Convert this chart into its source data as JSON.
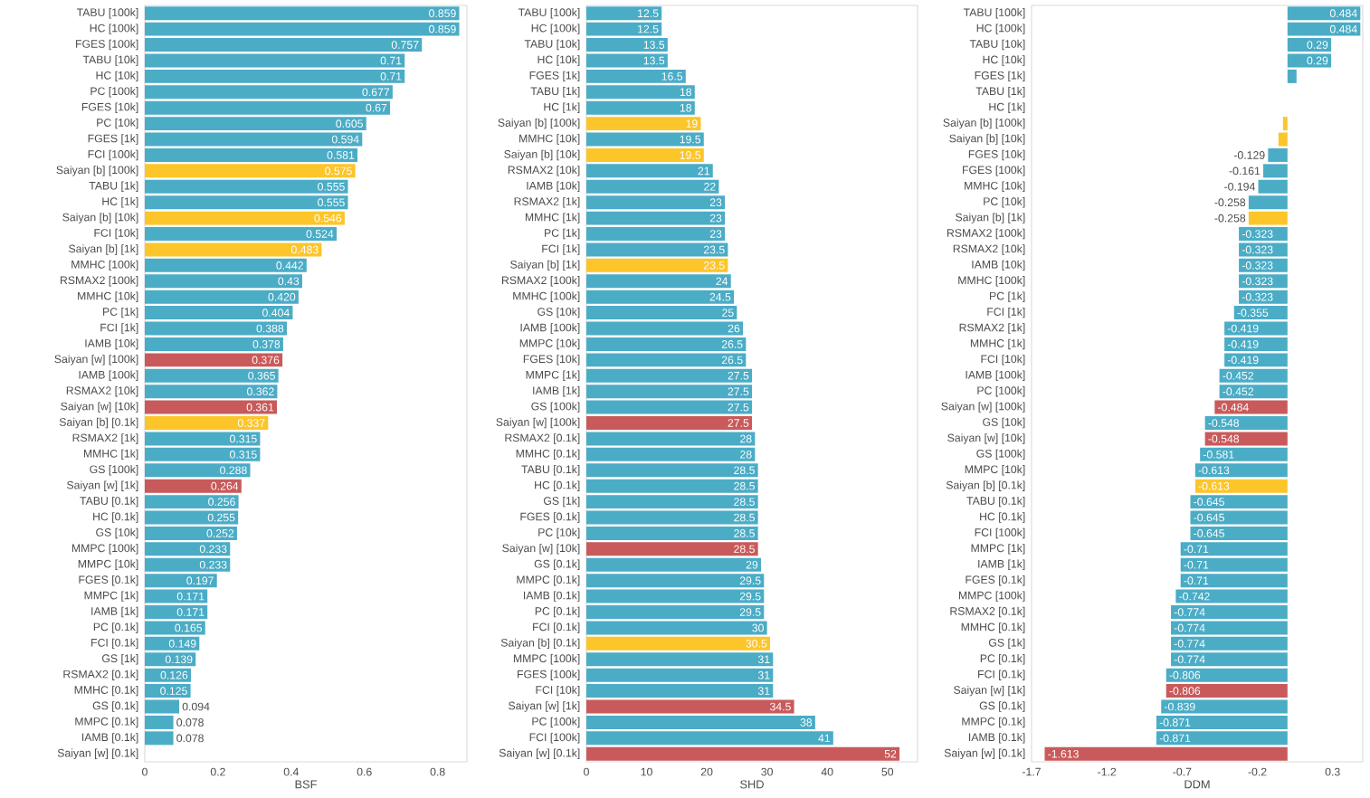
{
  "chart_data": [
    {
      "type": "bar",
      "orientation": "horizontal",
      "xlabel": "BSF",
      "xlim": [
        0,
        0.88
      ],
      "xticks": [
        0,
        0.2,
        0.4,
        0.6,
        0.8
      ],
      "categories": [
        "TABU [100k]",
        "HC [100k]",
        "FGES [100k]",
        "TABU [10k]",
        "HC [10k]",
        "PC [100k]",
        "FGES [10k]",
        "PC [10k]",
        "FGES [1k]",
        "FCI [100k]",
        "Saiyan [b] [100k]",
        "TABU [1k]",
        "HC [1k]",
        "Saiyan [b] [10k]",
        "FCI [10k]",
        "Saiyan [b] [1k]",
        "MMHC [100k]",
        "RSMAX2 [100k]",
        "MMHC [10k]",
        "PC [1k]",
        "FCI [1k]",
        "IAMB [10k]",
        "Saiyan [w] [100k]",
        "IAMB [100k]",
        "RSMAX2 [10k]",
        "Saiyan [w] [10k]",
        "Saiyan [b] [0.1k]",
        "RSMAX2 [1k]",
        "MMHC [1k]",
        "GS [100k]",
        "Saiyan [w] [1k]",
        "TABU [0.1k]",
        "HC [0.1k]",
        "GS [10k]",
        "MMPC [100k]",
        "MMPC [10k]",
        "FGES [0.1k]",
        "MMPC [1k]",
        "IAMB [1k]",
        "PC [0.1k]",
        "FCI [0.1k]",
        "GS [1k]",
        "RSMAX2 [0.1k]",
        "MMHC [0.1k]",
        "GS [0.1k]",
        "MMPC [0.1k]",
        "IAMB [0.1k]",
        "Saiyan [w] [0.1k]"
      ],
      "values": [
        0.859,
        0.859,
        0.757,
        0.71,
        0.71,
        0.677,
        0.67,
        0.605,
        0.594,
        0.581,
        0.575,
        0.555,
        0.555,
        0.546,
        0.524,
        0.483,
        0.442,
        0.43,
        0.42,
        0.404,
        0.388,
        0.378,
        0.376,
        0.365,
        0.362,
        0.361,
        0.337,
        0.315,
        0.315,
        0.288,
        0.264,
        0.256,
        0.255,
        0.252,
        0.233,
        0.233,
        0.197,
        0.171,
        0.171,
        0.165,
        0.149,
        0.139,
        0.126,
        0.125,
        0.094,
        0.078,
        0.078,
        0
      ],
      "value_labels": [
        "0.859",
        "0.859",
        "0.757",
        "0.71",
        "0.71",
        "0.677",
        "0.67",
        "0.605",
        "0.594",
        "0.581",
        "0.575",
        "0.555",
        "0.555",
        "0.546",
        "0.524",
        "0.483",
        "0.442",
        "0.43",
        "0.420",
        "0.404",
        "0.388",
        "0.378",
        "0.376",
        "0.365",
        "0.362",
        "0.361",
        "0.337",
        "0.315",
        "0.315",
        "0.288",
        "0.264",
        "0.256",
        "0.255",
        "0.252",
        "0.233",
        "0.233",
        "0.197",
        "0.171",
        "0.171",
        "0.165",
        "0.149",
        "0.139",
        "0.126",
        "0.125",
        "0.094",
        "0.078",
        "0.078",
        null
      ],
      "colors": [
        "#4bacc6",
        "#4bacc6",
        "#4bacc6",
        "#4bacc6",
        "#4bacc6",
        "#4bacc6",
        "#4bacc6",
        "#4bacc6",
        "#4bacc6",
        "#4bacc6",
        "#fcc52a",
        "#4bacc6",
        "#4bacc6",
        "#fcc52a",
        "#4bacc6",
        "#fcc52a",
        "#4bacc6",
        "#4bacc6",
        "#4bacc6",
        "#4bacc6",
        "#4bacc6",
        "#4bacc6",
        "#c95a5b",
        "#4bacc6",
        "#4bacc6",
        "#c95a5b",
        "#fcc52a",
        "#4bacc6",
        "#4bacc6",
        "#4bacc6",
        "#c95a5b",
        "#4bacc6",
        "#4bacc6",
        "#4bacc6",
        "#4bacc6",
        "#4bacc6",
        "#4bacc6",
        "#4bacc6",
        "#4bacc6",
        "#4bacc6",
        "#4bacc6",
        "#4bacc6",
        "#4bacc6",
        "#4bacc6",
        "#4bacc6",
        "#4bacc6",
        "#4bacc6",
        "#c95a5b"
      ]
    },
    {
      "type": "bar",
      "orientation": "horizontal",
      "xlabel": "SHD",
      "xlim": [
        0,
        55
      ],
      "xticks": [
        0,
        10,
        20,
        30,
        40,
        50
      ],
      "categories": [
        "TABU [100k]",
        "HC [100k]",
        "TABU [10k]",
        "HC [10k]",
        "FGES [1k]",
        "TABU [1k]",
        "HC [1k]",
        "Saiyan [b] [100k]",
        "MMHC [10k]",
        "Saiyan [b] [10k]",
        "RSMAX2 [10k]",
        "IAMB [10k]",
        "RSMAX2 [1k]",
        "MMHC [1k]",
        "PC [1k]",
        "FCI [1k]",
        "Saiyan [b] [1k]",
        "RSMAX2 [100k]",
        "MMHC [100k]",
        "GS [10k]",
        "IAMB [100k]",
        "MMPC [10k]",
        "FGES [10k]",
        "MMPC [1k]",
        "IAMB [1k]",
        "GS [100k]",
        "Saiyan [w] [100k]",
        "RSMAX2 [0.1k]",
        "MMHC [0.1k]",
        "TABU [0.1k]",
        "HC [0.1k]",
        "GS [1k]",
        "FGES [0.1k]",
        "PC [10k]",
        "Saiyan [w] [10k]",
        "GS [0.1k]",
        "MMPC [0.1k]",
        "IAMB [0.1k]",
        "PC [0.1k]",
        "FCI [0.1k]",
        "Saiyan [b] [0.1k]",
        "MMPC [100k]",
        "FGES [100k]",
        "FCI [10k]",
        "Saiyan [w] [1k]",
        "PC [100k]",
        "FCI [100k]",
        "Saiyan [w] [0.1k]"
      ],
      "values": [
        12.5,
        12.5,
        13.5,
        13.5,
        16.5,
        18,
        18,
        19,
        19.5,
        19.5,
        21,
        22,
        23,
        23,
        23,
        23.5,
        23.5,
        24,
        24.5,
        25,
        26,
        26.5,
        26.5,
        27.5,
        27.5,
        27.5,
        27.5,
        28,
        28,
        28.5,
        28.5,
        28.5,
        28.5,
        28.5,
        28.5,
        29,
        29.5,
        29.5,
        29.5,
        30,
        30.5,
        31,
        31,
        31,
        34.5,
        38,
        41,
        52
      ],
      "value_labels": [
        "12.5",
        "12.5",
        "13.5",
        "13.5",
        "16.5",
        "18",
        "18",
        "19",
        "19.5",
        "19.5",
        "21",
        "22",
        "23",
        "23",
        "23",
        "23.5",
        "23.5",
        "24",
        "24.5",
        "25",
        "26",
        "26.5",
        "26.5",
        "27.5",
        "27.5",
        "27.5",
        "27.5",
        "28",
        "28",
        "28.5",
        "28.5",
        "28.5",
        "28.5",
        "28.5",
        "28.5",
        "29",
        "29.5",
        "29.5",
        "29.5",
        "30",
        "30.5",
        "31",
        "31",
        "31",
        "34.5",
        "38",
        "41",
        "52"
      ],
      "colors": [
        "#4bacc6",
        "#4bacc6",
        "#4bacc6",
        "#4bacc6",
        "#4bacc6",
        "#4bacc6",
        "#4bacc6",
        "#fcc52a",
        "#4bacc6",
        "#fcc52a",
        "#4bacc6",
        "#4bacc6",
        "#4bacc6",
        "#4bacc6",
        "#4bacc6",
        "#4bacc6",
        "#fcc52a",
        "#4bacc6",
        "#4bacc6",
        "#4bacc6",
        "#4bacc6",
        "#4bacc6",
        "#4bacc6",
        "#4bacc6",
        "#4bacc6",
        "#4bacc6",
        "#c95a5b",
        "#4bacc6",
        "#4bacc6",
        "#4bacc6",
        "#4bacc6",
        "#4bacc6",
        "#4bacc6",
        "#4bacc6",
        "#c95a5b",
        "#4bacc6",
        "#4bacc6",
        "#4bacc6",
        "#4bacc6",
        "#4bacc6",
        "#fcc52a",
        "#4bacc6",
        "#4bacc6",
        "#4bacc6",
        "#c95a5b",
        "#4bacc6",
        "#4bacc6",
        "#c95a5b"
      ]
    },
    {
      "type": "bar",
      "orientation": "horizontal",
      "xlabel": "DDM",
      "xlim": [
        -1.7,
        0.5
      ],
      "xticks": [
        -1.7,
        -1.2,
        -0.7,
        -0.2,
        0.3
      ],
      "categories": [
        "TABU [100k]",
        "HC [100k]",
        "TABU [10k]",
        "HC [10k]",
        "FGES [1k]",
        "TABU [1k]",
        "HC [1k]",
        "Saiyan [b] [100k]",
        "Saiyan [b] [10k]",
        "FGES [10k]",
        "FGES [100k]",
        "MMHC [10k]",
        "PC [10k]",
        "Saiyan [b] [1k]",
        "RSMAX2 [100k]",
        "RSMAX2 [10k]",
        "IAMB [10k]",
        "MMHC [100k]",
        "PC [1k]",
        "FCI [1k]",
        "RSMAX2 [1k]",
        "MMHC [1k]",
        "FCI [10k]",
        "IAMB [100k]",
        "PC [100k]",
        "Saiyan [w] [100k]",
        "GS [10k]",
        "Saiyan [w] [10k]",
        "GS [100k]",
        "MMPC [10k]",
        "Saiyan [b] [0.1k]",
        "TABU [0.1k]",
        "HC [0.1k]",
        "FCI [100k]",
        "MMPC [1k]",
        "IAMB [1k]",
        "FGES [0.1k]",
        "MMPC [100k]",
        "RSMAX2 [0.1k]",
        "MMHC [0.1k]",
        "GS [1k]",
        "PC [0.1k]",
        "FCI [0.1k]",
        "Saiyan [w] [1k]",
        "GS [0.1k]",
        "MMPC [0.1k]",
        "IAMB [0.1k]",
        "Saiyan [w] [0.1k]"
      ],
      "values": [
        0.484,
        0.484,
        0.29,
        0.29,
        0.06,
        0,
        0,
        -0.03,
        -0.06,
        -0.129,
        -0.161,
        -0.194,
        -0.258,
        -0.258,
        -0.323,
        -0.323,
        -0.323,
        -0.323,
        -0.323,
        -0.355,
        -0.419,
        -0.419,
        -0.419,
        -0.452,
        -0.452,
        -0.484,
        -0.548,
        -0.548,
        -0.581,
        -0.613,
        -0.613,
        -0.645,
        -0.645,
        -0.645,
        -0.71,
        -0.71,
        -0.71,
        -0.742,
        -0.774,
        -0.774,
        -0.774,
        -0.774,
        -0.806,
        -0.806,
        -0.839,
        -0.871,
        -0.871,
        -1.613
      ],
      "value_labels": [
        "0.484",
        "0.484",
        "0.29",
        "0.29",
        null,
        null,
        null,
        null,
        null,
        "-0.129",
        "-0.161",
        "-0.194",
        "-0.258",
        "-0.258",
        "-0.323",
        "-0.323",
        "-0.323",
        "-0.323",
        "-0.323",
        "-0.355",
        "-0.419",
        "-0.419",
        "-0.419",
        "-0.452",
        "-0.452",
        "-0.484",
        "-0.548",
        "-0.548",
        "-0.581",
        "-0.613",
        "-0.613",
        "-0.645",
        "-0.645",
        "-0.645",
        "-0.71",
        "-0.71",
        "-0.71",
        "-0.742",
        "-0.774",
        "-0.774",
        "-0.774",
        "-0.774",
        "-0.806",
        "-0.806",
        "-0.839",
        "-0.871",
        "-0.871",
        "-1.613"
      ],
      "colors": [
        "#4bacc6",
        "#4bacc6",
        "#4bacc6",
        "#4bacc6",
        "#4bacc6",
        "#4bacc6",
        "#4bacc6",
        "#fcc52a",
        "#fcc52a",
        "#4bacc6",
        "#4bacc6",
        "#4bacc6",
        "#4bacc6",
        "#fcc52a",
        "#4bacc6",
        "#4bacc6",
        "#4bacc6",
        "#4bacc6",
        "#4bacc6",
        "#4bacc6",
        "#4bacc6",
        "#4bacc6",
        "#4bacc6",
        "#4bacc6",
        "#4bacc6",
        "#c95a5b",
        "#4bacc6",
        "#c95a5b",
        "#4bacc6",
        "#4bacc6",
        "#fcc52a",
        "#4bacc6",
        "#4bacc6",
        "#4bacc6",
        "#4bacc6",
        "#4bacc6",
        "#4bacc6",
        "#4bacc6",
        "#4bacc6",
        "#4bacc6",
        "#4bacc6",
        "#4bacc6",
        "#4bacc6",
        "#c95a5b",
        "#4bacc6",
        "#4bacc6",
        "#4bacc6",
        "#c95a5b"
      ]
    }
  ]
}
